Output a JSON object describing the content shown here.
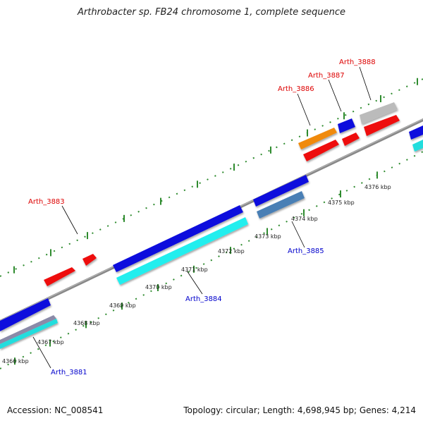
{
  "title": "Arthrobacter sp. FB24 chromosome 1, complete sequence",
  "footer": {
    "accession": "Accession: NC_008541",
    "summary": "Topology: circular; Length: 4,698,945 bp; Genes: 4,214"
  },
  "colors": {
    "forward_label": "#dd0000",
    "reverse_label": "#0000cc",
    "backbone": "#888888",
    "tick": "#2e8b2e"
  },
  "scale": [
    {
      "label": "4366 kbp"
    },
    {
      "label": "4367 kbp"
    },
    {
      "label": "4368 kbp"
    },
    {
      "label": "4369 kbp"
    },
    {
      "label": "4370 kbp"
    },
    {
      "label": "4371 kbp"
    },
    {
      "label": "4372 kbp"
    },
    {
      "label": "4373 kbp"
    },
    {
      "label": "4374 kbp"
    },
    {
      "label": "4375 kbp"
    },
    {
      "label": "4376 kbp"
    }
  ],
  "gene_labels": [
    {
      "name": "Arth_3881",
      "strand": "reverse"
    },
    {
      "name": "Arth_3883",
      "strand": "forward"
    },
    {
      "name": "Arth_3884",
      "strand": "reverse"
    },
    {
      "name": "Arth_3885",
      "strand": "reverse"
    },
    {
      "name": "Arth_3886",
      "strand": "forward"
    },
    {
      "name": "Arth_3887",
      "strand": "forward"
    },
    {
      "name": "Arth_3888",
      "strand": "forward"
    }
  ]
}
